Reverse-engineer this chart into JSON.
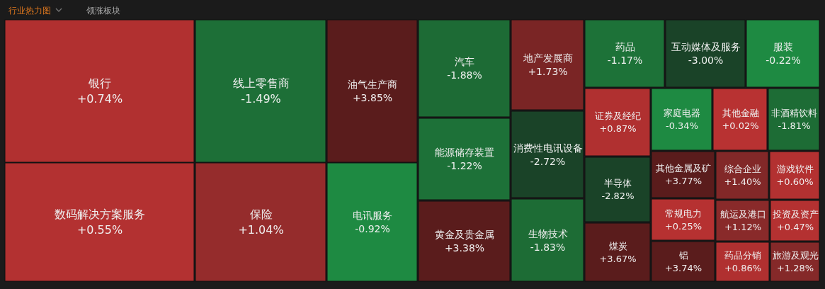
{
  "chart_data": {
    "type": "other",
    "annotations": [
      "行业热力图",
      "领涨板块"
    ],
    "categories": [
      "银行",
      "数码解决方案服务",
      "线上零售商",
      "保险",
      "油气生产商",
      "电讯服务",
      "汽车",
      "能源储存装置",
      "黄金及贵金属",
      "地产发展商",
      "消费性电讯设备",
      "生物技术",
      "药品",
      "互动媒体及服务",
      "服装",
      "证券及经纪",
      "半导体",
      "煤炭",
      "家庭电器",
      "其他金属及矿",
      "常规电力",
      "铝",
      "其他金融",
      "非酒精饮料",
      "综合企业",
      "游戏软件",
      "航运及港口",
      "投资及资产",
      "药品分销",
      "旅游及观光"
    ],
    "values": [
      0.74,
      0.55,
      -1.49,
      1.04,
      3.85,
      -0.92,
      -1.88,
      -1.22,
      3.38,
      1.73,
      -2.72,
      -1.83,
      -1.17,
      -3.0,
      -0.22,
      0.87,
      -2.82,
      3.67,
      -0.34,
      3.77,
      0.25,
      3.74,
      0.02,
      -1.81,
      1.4,
      0.6,
      1.12,
      0.47,
      0.86,
      1.28
    ],
    "value_labels": [
      "+0.74%",
      "+0.55%",
      "-1.49%",
      "+1.04%",
      "+3.85%",
      "-0.92%",
      "-1.88%",
      "-1.22%",
      "+3.38%",
      "+1.73%",
      "-2.72%",
      "-1.83%",
      "-1.17%",
      "-3.00%",
      "-0.22%",
      "+0.87%",
      "-2.82%",
      "+3.67%",
      "-0.34%",
      "+3.77%",
      "+0.25%",
      "+3.74%",
      "+0.02%",
      "-1.81%",
      "+1.40%",
      "+0.60%",
      "+1.12%",
      "+0.47%",
      "+0.86%",
      "+1.28%"
    ]
  }
}
